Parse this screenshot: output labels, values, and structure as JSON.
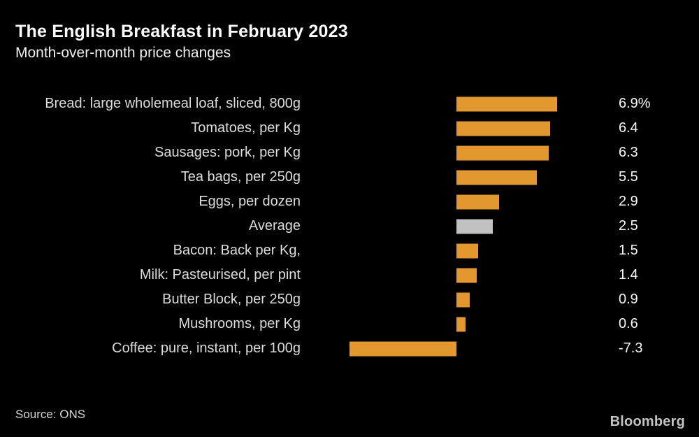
{
  "header": {
    "title": "The English Breakfast in February 2023",
    "subtitle": "Month-over-month price changes"
  },
  "chart_data": {
    "type": "bar",
    "orientation": "horizontal",
    "title": "The English Breakfast in February 2023",
    "subtitle": "Month-over-month price changes",
    "categories": [
      "Bread: large wholemeal loaf, sliced, 800g",
      "Tomatoes, per Kg",
      "Sausages: pork, per Kg",
      "Tea bags, per 250g",
      "Eggs, per dozen",
      "Average",
      "Bacon: Back per Kg,",
      "Milk: Pasteurised, per pint",
      "Butter Block, per 250g",
      "Mushrooms, per Kg",
      "Coffee: pure, instant, per 100g"
    ],
    "values": [
      6.9,
      6.4,
      6.3,
      5.5,
      2.9,
      2.5,
      1.5,
      1.4,
      0.9,
      0.6,
      -7.3
    ],
    "value_labels": [
      "6.9%",
      "6.4",
      "6.3",
      "5.5",
      "2.9",
      "2.5",
      "1.5",
      "1.4",
      "0.9",
      "0.6",
      "-7.3"
    ],
    "unit": "%",
    "highlight_index": 5,
    "xlim": [
      -7.3,
      6.9
    ],
    "grid": false,
    "legend": "none",
    "colors": {
      "bar": "#e2982f",
      "highlight_bar": "#c1c1c1"
    }
  },
  "footer": {
    "source": "Source: ONS",
    "brand": "Bloomberg"
  },
  "colors": {
    "background": "#000000",
    "title_text": "#ffffff",
    "label_text": "#dcdcdc",
    "value_text": "#f7f7f7"
  }
}
